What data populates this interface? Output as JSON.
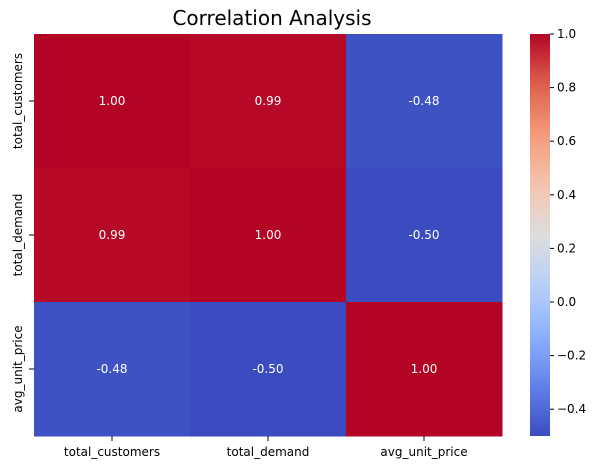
{
  "chart_data": {
    "type": "heatmap",
    "title": "Correlation Analysis",
    "x_labels": [
      "total_customers",
      "total_demand",
      "avg_unit_price"
    ],
    "y_labels": [
      "total_customers",
      "total_demand",
      "avg_unit_price"
    ],
    "values": [
      [
        1.0,
        0.99,
        -0.48
      ],
      [
        0.99,
        1.0,
        -0.5
      ],
      [
        -0.48,
        -0.5,
        1.0
      ]
    ],
    "cell_labels": [
      [
        "1.00",
        "0.99",
        "-0.48"
      ],
      [
        "0.99",
        "1.00",
        "-0.50"
      ],
      [
        "-0.48",
        "-0.50",
        "1.00"
      ]
    ],
    "colormap": "coolwarm",
    "vmin": -0.5,
    "vmax": 1.0,
    "colorbar_ticks": [
      -0.4,
      -0.2,
      0.0,
      0.2,
      0.4,
      0.6,
      0.8,
      1.0
    ],
    "colorbar_tick_labels": [
      "−0.4",
      "−0.2",
      "0.0",
      "0.2",
      "0.4",
      "0.6",
      "0.8",
      "1.0"
    ],
    "colors": {
      "low": "#3b4cc0",
      "mid": "#dddddd",
      "high": "#b40426"
    }
  }
}
